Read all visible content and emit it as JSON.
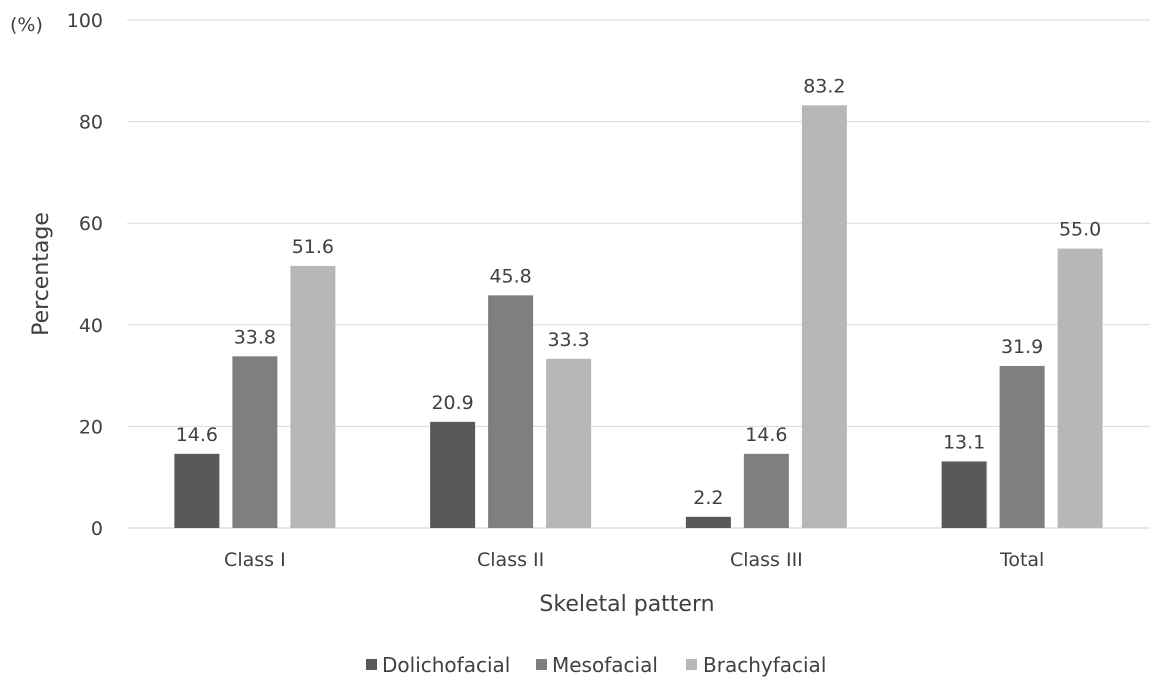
{
  "chart_data": {
    "type": "bar",
    "unit_label": "(%)",
    "ylabel": "Percentage",
    "xlabel": "Skeletal pattern",
    "ylim": [
      0,
      100
    ],
    "yticks": [
      0,
      20,
      40,
      60,
      80,
      100
    ],
    "grid": true,
    "legend_position": "bottom",
    "categories": [
      "Class I",
      "Class II",
      "Class III",
      "Total"
    ],
    "series": [
      {
        "name": "Dolichofacial",
        "color": "#595959",
        "values": [
          14.6,
          20.9,
          2.2,
          13.1
        ],
        "labels": [
          "14.6",
          "20.9",
          "2.2",
          "13.1"
        ]
      },
      {
        "name": "Mesofacial",
        "color": "#7f7f81",
        "values": [
          33.8,
          45.8,
          14.6,
          31.9
        ],
        "labels": [
          "33.8",
          "45.8",
          "14.6",
          "31.9"
        ]
      },
      {
        "name": "Brachyfacial",
        "color": "#b7b7b9",
        "values": [
          51.6,
          33.3,
          83.2,
          55.0
        ],
        "labels": [
          "51.6",
          "33.3",
          "83.2",
          "55.0"
        ]
      }
    ]
  }
}
